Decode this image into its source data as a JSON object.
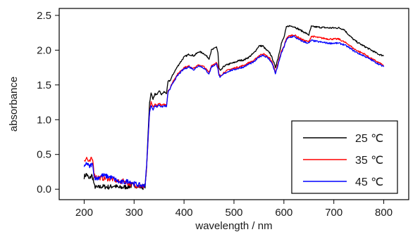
{
  "chart_data": {
    "type": "line",
    "title": "",
    "xlabel": "wavelength / nm",
    "ylabel": "absorbance",
    "xlim": [
      150,
      850
    ],
    "ylim": [
      -0.15,
      2.6
    ],
    "xticks": [
      200,
      300,
      400,
      500,
      600,
      700,
      800
    ],
    "yticks": [
      0.0,
      0.5,
      1.0,
      1.5,
      2.0,
      2.5
    ],
    "ytick_labels": [
      "0.0",
      "0.5",
      "1.0",
      "1.5",
      "2.0",
      "2.5"
    ],
    "grid": false,
    "legend_position": "bottom-right",
    "series": [
      {
        "name": "25 ℃",
        "color": "#000000",
        "points": [
          [
            200,
            0.18
          ],
          [
            205,
            0.22
          ],
          [
            210,
            0.14
          ],
          [
            215,
            0.2
          ],
          [
            218,
            0.15
          ],
          [
            220,
            0.05
          ],
          [
            225,
            0.02
          ],
          [
            235,
            0.04
          ],
          [
            250,
            0.03
          ],
          [
            260,
            0.05
          ],
          [
            270,
            0.02
          ],
          [
            280,
            0.03
          ],
          [
            290,
            0.04
          ],
          [
            300,
            0.06
          ],
          [
            310,
            0.04
          ],
          [
            318,
            0.03
          ],
          [
            322,
            0.05
          ],
          [
            325,
            0.3
          ],
          [
            328,
            0.8
          ],
          [
            331,
            1.25
          ],
          [
            334,
            1.38
          ],
          [
            338,
            1.3
          ],
          [
            342,
            1.37
          ],
          [
            346,
            1.35
          ],
          [
            350,
            1.42
          ],
          [
            355,
            1.36
          ],
          [
            360,
            1.4
          ],
          [
            365,
            1.38
          ],
          [
            368,
            1.55
          ],
          [
            372,
            1.56
          ],
          [
            376,
            1.62
          ],
          [
            380,
            1.68
          ],
          [
            390,
            1.8
          ],
          [
            400,
            1.9
          ],
          [
            410,
            1.94
          ],
          [
            420,
            1.92
          ],
          [
            430,
            1.98
          ],
          [
            440,
            1.95
          ],
          [
            450,
            1.88
          ],
          [
            455,
            2.0
          ],
          [
            460,
            2.02
          ],
          [
            465,
            2.05
          ],
          [
            468,
            1.96
          ],
          [
            470,
            1.74
          ],
          [
            473,
            1.7
          ],
          [
            480,
            1.77
          ],
          [
            490,
            1.8
          ],
          [
            500,
            1.82
          ],
          [
            510,
            1.85
          ],
          [
            520,
            1.86
          ],
          [
            530,
            1.9
          ],
          [
            540,
            1.96
          ],
          [
            550,
            2.06
          ],
          [
            558,
            2.06
          ],
          [
            565,
            2.0
          ],
          [
            572,
            1.96
          ],
          [
            578,
            1.86
          ],
          [
            583,
            1.75
          ],
          [
            588,
            1.88
          ],
          [
            595,
            2.1
          ],
          [
            600,
            2.18
          ],
          [
            605,
            2.33
          ],
          [
            610,
            2.35
          ],
          [
            620,
            2.34
          ],
          [
            630,
            2.3
          ],
          [
            640,
            2.26
          ],
          [
            650,
            2.22
          ],
          [
            655,
            2.34
          ],
          [
            670,
            2.33
          ],
          [
            690,
            2.32
          ],
          [
            710,
            2.32
          ],
          [
            720,
            2.3
          ],
          [
            730,
            2.22
          ],
          [
            740,
            2.15
          ],
          [
            750,
            2.1
          ],
          [
            760,
            2.06
          ],
          [
            770,
            2.02
          ],
          [
            780,
            1.98
          ],
          [
            790,
            1.94
          ],
          [
            800,
            1.92
          ]
        ]
      },
      {
        "name": "35 ℃",
        "color": "#ff0000",
        "points": [
          [
            200,
            0.42
          ],
          [
            205,
            0.45
          ],
          [
            210,
            0.38
          ],
          [
            215,
            0.44
          ],
          [
            218,
            0.4
          ],
          [
            220,
            0.2
          ],
          [
            225,
            0.18
          ],
          [
            235,
            0.16
          ],
          [
            250,
            0.15
          ],
          [
            260,
            0.14
          ],
          [
            270,
            0.1
          ],
          [
            280,
            0.12
          ],
          [
            290,
            0.08
          ],
          [
            300,
            0.06
          ],
          [
            310,
            0.05
          ],
          [
            318,
            0.04
          ],
          [
            322,
            0.06
          ],
          [
            325,
            0.3
          ],
          [
            328,
            0.7
          ],
          [
            331,
            1.1
          ],
          [
            334,
            1.25
          ],
          [
            338,
            1.18
          ],
          [
            342,
            1.22
          ],
          [
            346,
            1.2
          ],
          [
            350,
            1.24
          ],
          [
            355,
            1.2
          ],
          [
            360,
            1.22
          ],
          [
            365,
            1.21
          ],
          [
            368,
            1.42
          ],
          [
            372,
            1.45
          ],
          [
            376,
            1.52
          ],
          [
            380,
            1.58
          ],
          [
            390,
            1.68
          ],
          [
            400,
            1.75
          ],
          [
            410,
            1.77
          ],
          [
            420,
            1.74
          ],
          [
            430,
            1.79
          ],
          [
            440,
            1.76
          ],
          [
            450,
            1.68
          ],
          [
            455,
            1.78
          ],
          [
            460,
            1.8
          ],
          [
            465,
            1.82
          ],
          [
            468,
            1.76
          ],
          [
            470,
            1.65
          ],
          [
            473,
            1.63
          ],
          [
            480,
            1.68
          ],
          [
            490,
            1.72
          ],
          [
            500,
            1.74
          ],
          [
            510,
            1.76
          ],
          [
            520,
            1.78
          ],
          [
            530,
            1.82
          ],
          [
            540,
            1.85
          ],
          [
            550,
            1.92
          ],
          [
            558,
            1.95
          ],
          [
            565,
            1.92
          ],
          [
            572,
            1.88
          ],
          [
            578,
            1.8
          ],
          [
            583,
            1.68
          ],
          [
            588,
            1.8
          ],
          [
            595,
            1.98
          ],
          [
            600,
            2.05
          ],
          [
            605,
            2.17
          ],
          [
            610,
            2.2
          ],
          [
            620,
            2.22
          ],
          [
            630,
            2.18
          ],
          [
            640,
            2.14
          ],
          [
            650,
            2.12
          ],
          [
            655,
            2.2
          ],
          [
            670,
            2.18
          ],
          [
            690,
            2.16
          ],
          [
            710,
            2.16
          ],
          [
            720,
            2.12
          ],
          [
            730,
            2.08
          ],
          [
            740,
            2.02
          ],
          [
            750,
            1.98
          ],
          [
            760,
            1.95
          ],
          [
            770,
            1.9
          ],
          [
            780,
            1.86
          ],
          [
            790,
            1.82
          ],
          [
            800,
            1.78
          ]
        ]
      },
      {
        "name": "45 ℃",
        "color": "#0000ff",
        "points": [
          [
            200,
            0.3
          ],
          [
            205,
            0.38
          ],
          [
            210,
            0.32
          ],
          [
            215,
            0.36
          ],
          [
            218,
            0.33
          ],
          [
            220,
            0.18
          ],
          [
            225,
            0.15
          ],
          [
            235,
            0.2
          ],
          [
            250,
            0.18
          ],
          [
            260,
            0.15
          ],
          [
            270,
            0.1
          ],
          [
            280,
            0.1
          ],
          [
            290,
            0.12
          ],
          [
            300,
            0.08
          ],
          [
            310,
            0.06
          ],
          [
            318,
            0.05
          ],
          [
            322,
            0.07
          ],
          [
            325,
            0.32
          ],
          [
            328,
            0.72
          ],
          [
            331,
            1.12
          ],
          [
            334,
            1.2
          ],
          [
            338,
            1.15
          ],
          [
            342,
            1.2
          ],
          [
            346,
            1.18
          ],
          [
            350,
            1.22
          ],
          [
            355,
            1.18
          ],
          [
            360,
            1.2
          ],
          [
            365,
            1.19
          ],
          [
            368,
            1.4
          ],
          [
            372,
            1.44
          ],
          [
            376,
            1.5
          ],
          [
            380,
            1.56
          ],
          [
            390,
            1.66
          ],
          [
            400,
            1.73
          ],
          [
            410,
            1.76
          ],
          [
            420,
            1.72
          ],
          [
            430,
            1.78
          ],
          [
            440,
            1.74
          ],
          [
            450,
            1.66
          ],
          [
            455,
            1.76
          ],
          [
            460,
            1.78
          ],
          [
            465,
            1.8
          ],
          [
            468,
            1.74
          ],
          [
            470,
            1.63
          ],
          [
            473,
            1.61
          ],
          [
            480,
            1.66
          ],
          [
            490,
            1.7
          ],
          [
            500,
            1.72
          ],
          [
            510,
            1.74
          ],
          [
            520,
            1.76
          ],
          [
            530,
            1.8
          ],
          [
            540,
            1.83
          ],
          [
            550,
            1.9
          ],
          [
            558,
            1.93
          ],
          [
            565,
            1.9
          ],
          [
            572,
            1.86
          ],
          [
            578,
            1.78
          ],
          [
            583,
            1.66
          ],
          [
            588,
            1.78
          ],
          [
            595,
            1.96
          ],
          [
            600,
            2.04
          ],
          [
            605,
            2.15
          ],
          [
            610,
            2.18
          ],
          [
            620,
            2.2
          ],
          [
            630,
            2.15
          ],
          [
            640,
            2.12
          ],
          [
            650,
            2.1
          ],
          [
            655,
            2.14
          ],
          [
            670,
            2.12
          ],
          [
            690,
            2.1
          ],
          [
            710,
            2.1
          ],
          [
            720,
            2.08
          ],
          [
            730,
            2.04
          ],
          [
            740,
            1.99
          ],
          [
            750,
            1.95
          ],
          [
            760,
            1.92
          ],
          [
            770,
            1.88
          ],
          [
            780,
            1.84
          ],
          [
            790,
            1.8
          ],
          [
            800,
            1.76
          ]
        ]
      }
    ]
  }
}
